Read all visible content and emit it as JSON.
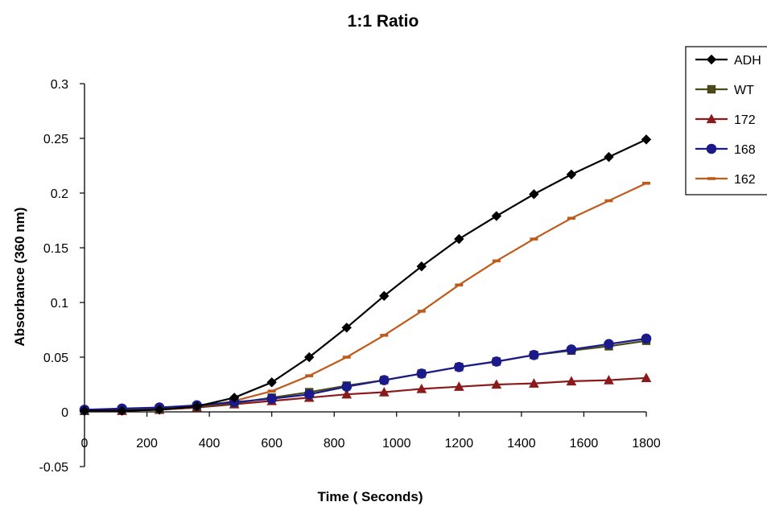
{
  "chart_data": {
    "type": "line",
    "title": "1:1 Ratio",
    "xlabel": "Time ( Seconds)",
    "ylabel": "Absorbance (360 nm)",
    "xlim": [
      0,
      1800
    ],
    "ylim": [
      -0.05,
      0.3
    ],
    "x_ticks": [
      0,
      200,
      400,
      600,
      800,
      1000,
      1200,
      1400,
      1600,
      1800
    ],
    "x_tick_labels": [
      "0",
      "200",
      "400",
      "600",
      "800",
      "1000",
      "1200",
      "1400",
      "1600",
      "1800"
    ],
    "y_ticks": [
      -0.05,
      0,
      0.05,
      0.1,
      0.15,
      0.2,
      0.25,
      0.3
    ],
    "y_tick_labels": [
      "-0.05",
      "0",
      "0.05",
      "0.1",
      "0.15",
      "0.2",
      "0.25",
      "0.3"
    ],
    "grid": false,
    "legend_position": "top-right",
    "x": [
      0,
      120,
      240,
      360,
      480,
      600,
      720,
      840,
      960,
      1080,
      1200,
      1320,
      1440,
      1560,
      1680,
      1800
    ],
    "series": [
      {
        "name": "ADH",
        "color": "#000000",
        "marker": "diamond",
        "values": [
          0.001,
          0.001,
          0.002,
          0.005,
          0.013,
          0.027,
          0.05,
          0.077,
          0.106,
          0.133,
          0.158,
          0.179,
          0.199,
          0.217,
          0.233,
          0.249
        ]
      },
      {
        "name": "WT",
        "color": "#4a4a1a",
        "marker": "square",
        "values": [
          0.001,
          0.002,
          0.003,
          0.005,
          0.008,
          0.013,
          0.018,
          0.024,
          0.029,
          0.035,
          0.041,
          0.046,
          0.052,
          0.056,
          0.06,
          0.065
        ]
      },
      {
        "name": "172",
        "color": "#8b1a1a",
        "marker": "triangle",
        "values": [
          0.001,
          0.001,
          0.002,
          0.004,
          0.007,
          0.01,
          0.013,
          0.016,
          0.018,
          0.021,
          0.023,
          0.025,
          0.026,
          0.028,
          0.029,
          0.031
        ]
      },
      {
        "name": "168",
        "color": "#1a1a8b",
        "marker": "circle",
        "values": [
          0.002,
          0.003,
          0.004,
          0.006,
          0.009,
          0.012,
          0.016,
          0.023,
          0.029,
          0.035,
          0.041,
          0.046,
          0.052,
          0.057,
          0.062,
          0.067
        ]
      },
      {
        "name": "162",
        "color": "#c05a1a",
        "marker": "dash",
        "values": [
          0.001,
          0.001,
          0.002,
          0.004,
          0.01,
          0.019,
          0.033,
          0.05,
          0.07,
          0.092,
          0.116,
          0.138,
          0.158,
          0.177,
          0.193,
          0.209
        ]
      }
    ]
  }
}
